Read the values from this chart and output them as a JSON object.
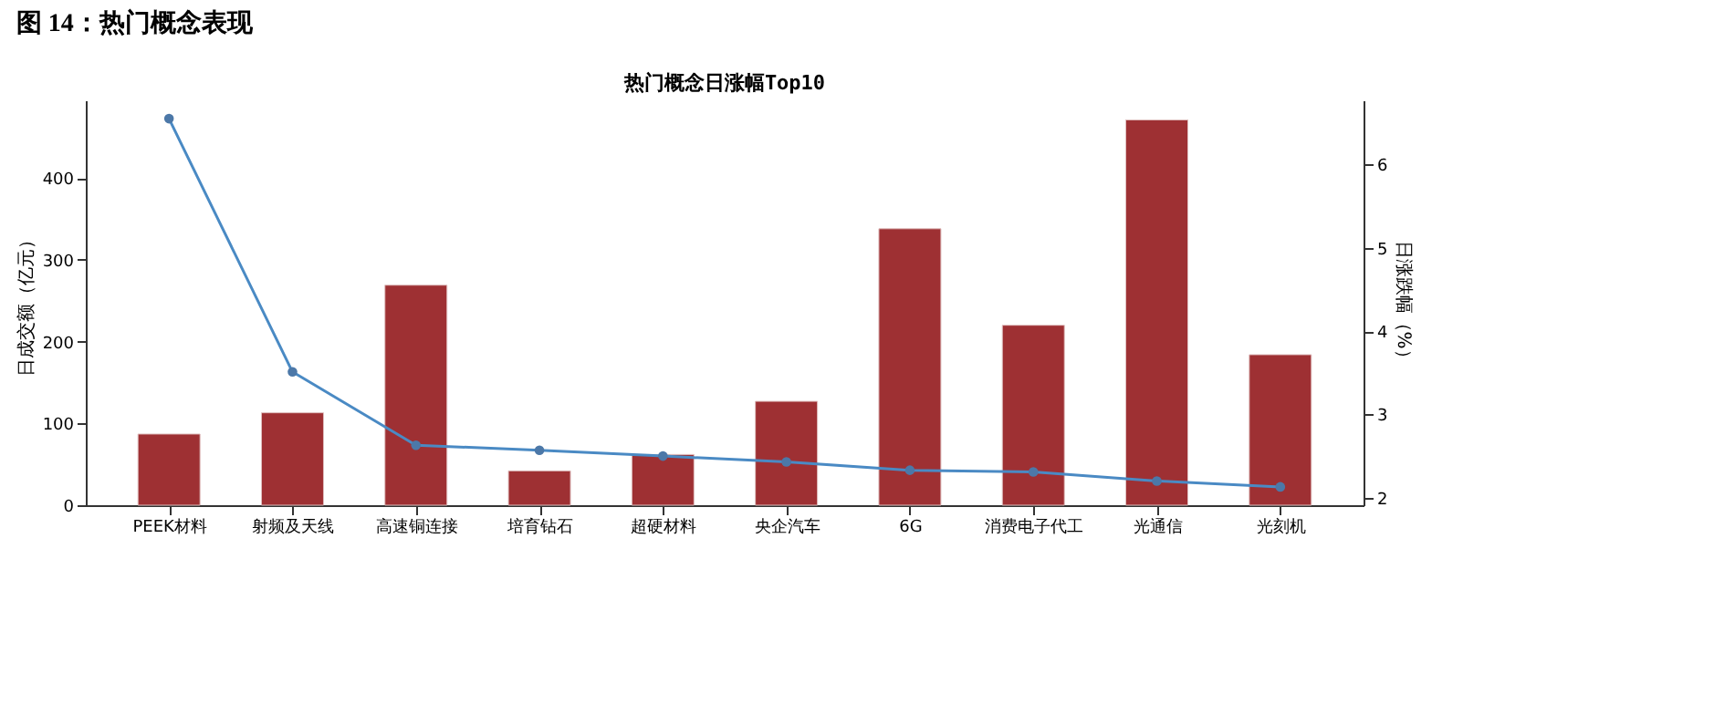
{
  "chart_data": {
    "type": "bar",
    "title": "图 14：热门概念表现",
    "subtitle": "热门概念日涨幅Top10",
    "categories": [
      "PEEK材料",
      "射频及天线",
      "高速铜连接",
      "培育钻石",
      "超硬材料",
      "央企汽车",
      "6G",
      "消费电子代工",
      "光通信",
      "光刻机"
    ],
    "series": [
      {
        "color": "#9e3033",
        "values": [
          87,
          113,
          269,
          42,
          62,
          127,
          338,
          220,
          471,
          184
        ]
      },
      {
        "type": "line",
        "axis": "y2",
        "color": "#4a8ac4",
        "marker": "circle",
        "values": [
          6.55,
          3.51,
          2.63,
          2.57,
          2.5,
          2.43,
          2.33,
          2.31,
          2.2,
          2.13
        ]
      }
    ],
    "ylabel": "日成交额（亿元）",
    "y2label": "日涨跌幅（%）",
    "ylim": [
      0,
      495
    ],
    "yticks": [
      0,
      100,
      200,
      300,
      400
    ],
    "y2lim": [
      1.91,
      6.77
    ],
    "y2ticks": [
      2,
      3,
      4,
      5,
      6
    ],
    "grid": false,
    "legend": false
  }
}
